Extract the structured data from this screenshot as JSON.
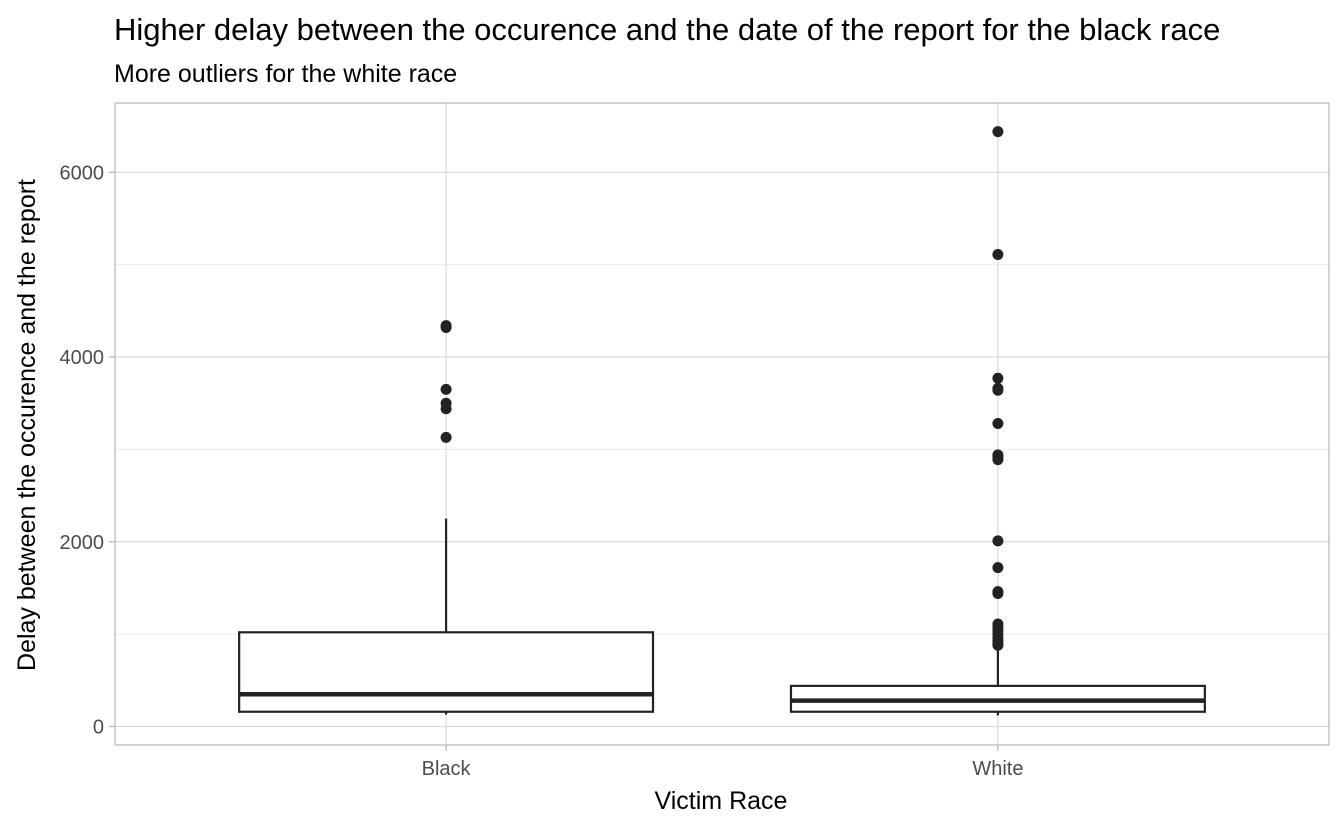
{
  "chart_data": {
    "type": "box",
    "title": "Higher delay between the occurence and the date of the report for the black race",
    "subtitle": "More outliers for the white race",
    "xlabel": "Victim Race",
    "ylabel": "Delay between the occurence and the report",
    "categories": [
      "Black",
      "White"
    ],
    "ylim": [
      -200,
      6750
    ],
    "y_ticks": [
      0,
      2000,
      4000,
      6000
    ],
    "y_minor_ticks": [
      1000,
      3000,
      5000
    ],
    "grid": true,
    "boxes": [
      {
        "category": "Black",
        "whisker_low": 130,
        "q1": 160,
        "median": 350,
        "q3": 1020,
        "whisker_high": 2250,
        "outliers": [
          3130,
          3440,
          3500,
          3650,
          4320,
          4340
        ]
      },
      {
        "category": "White",
        "whisker_low": 120,
        "q1": 160,
        "median": 280,
        "q3": 440,
        "whisker_high": 860,
        "outliers": [
          880,
          900,
          930,
          960,
          1000,
          1040,
          1080,
          1110,
          1440,
          1460,
          1720,
          2010,
          2890,
          2920,
          2940,
          3280,
          3640,
          3660,
          3770,
          5110,
          6440
        ]
      }
    ],
    "colors": {
      "box_stroke": "#222222",
      "outlier": "#222222",
      "panel_border": "#b3b3b3",
      "grid_major": "#d9d9d9",
      "grid_minor": "#ebebeb",
      "tick_label": "#4d4d4d"
    }
  }
}
